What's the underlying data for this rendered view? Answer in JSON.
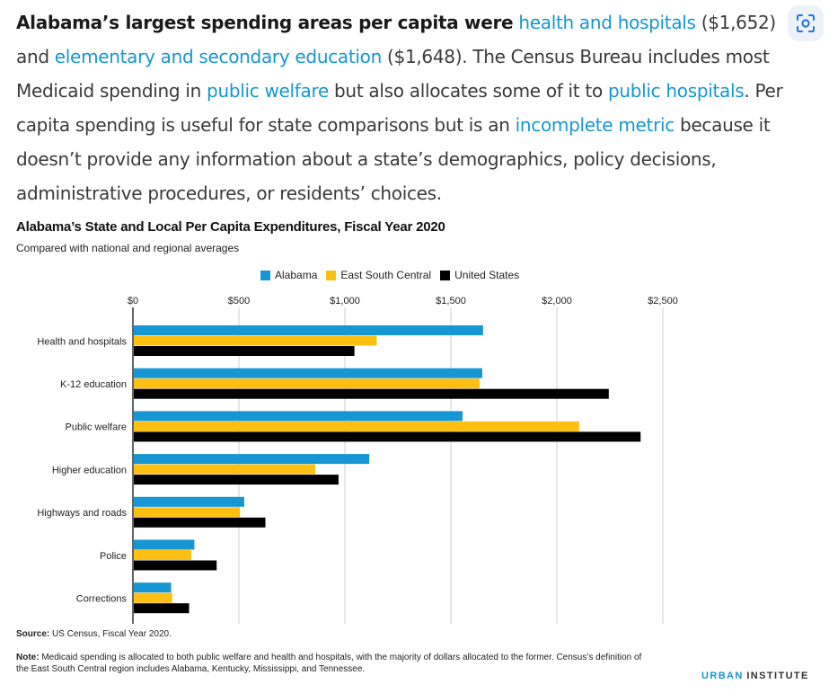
{
  "paragraph": {
    "lead": "Alabama’s largest spending areas per capita were",
    "link1": "health and hospitals",
    "t1": " ($1,652) and ",
    "link2": "elementary and secondary education",
    "t2": " ($1,648). The Census Bureau includes most Medicaid spending in ",
    "link3": "public welfare",
    "t3": " but also allocates some of it to ",
    "link4": "public hospitals",
    "t4": ". Per capita spending is useful for state comparisons but is an ",
    "link5": "incomplete metric",
    "t5": " because it doesn’t provide any information about a state’s demographics, policy decisions, administrative procedures, or residents’ choices."
  },
  "lens_icon": "visual-search-icon",
  "chart_data": {
    "type": "bar",
    "orientation": "horizontal",
    "title": "Alabama’s State and Local Per Capita Expenditures, Fiscal Year 2020",
    "subtitle": "Compared with national and regional averages",
    "categories": [
      "Health and hospitals",
      "K-12 education",
      "Public welfare",
      "Higher education",
      "Highways and roads",
      "Police",
      "Corrections"
    ],
    "series": [
      {
        "name": "Alabama",
        "color": "#1696d2",
        "values": [
          1652,
          1648,
          1555,
          1115,
          525,
          290,
          180
        ]
      },
      {
        "name": "East South Central",
        "color": "#fdbf11",
        "values": [
          1150,
          1635,
          2105,
          860,
          505,
          275,
          185
        ]
      },
      {
        "name": "United States",
        "color": "#000000",
        "values": [
          1045,
          2245,
          2395,
          970,
          625,
          395,
          265
        ]
      }
    ],
    "xlim": [
      0,
      2500
    ],
    "xticks": [
      0,
      500,
      1000,
      1500,
      2000,
      2500
    ],
    "xtick_labels": [
      "$0",
      "$500",
      "$1,000",
      "$1,500",
      "$2,000",
      "$2,500"
    ],
    "grid": true,
    "legend_position": "top"
  },
  "footer": {
    "source_label": "Source:",
    "source_text": " US Census, Fiscal Year 2020.",
    "note_label": "Note:",
    "note_text": " Medicaid spending is allocated to both public welfare and health and hospitals, with the majority of dollars allocated to the former. Census’s definition of the East South Central region includes Alabama, Kentucky, Mississippi, and Tennessee.",
    "brand_urban": "URBAN",
    "brand_institute": "INSTITUTE"
  }
}
